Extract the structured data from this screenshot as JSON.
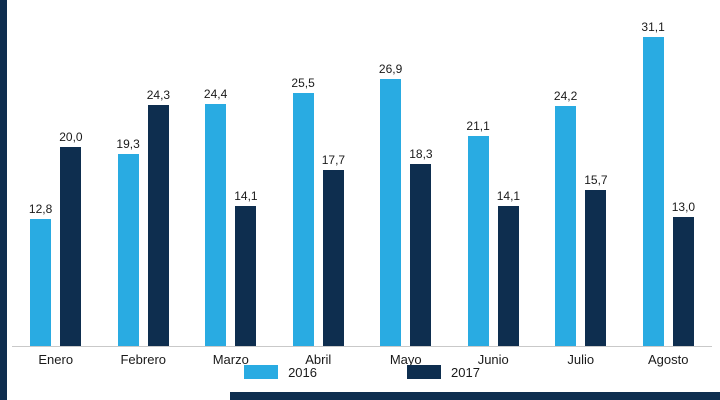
{
  "chart_data": {
    "type": "bar",
    "title": "",
    "categories": [
      "Enero",
      "Febrero",
      "Marzo",
      "Abril",
      "Mayo",
      "Junio",
      "Julio",
      "Agosto"
    ],
    "series": [
      {
        "name": "2016",
        "color": "#29abe2",
        "values": [
          12.8,
          19.3,
          24.4,
          25.5,
          26.9,
          21.1,
          24.2,
          31.1
        ]
      },
      {
        "name": "2017",
        "color": "#0e2e4f",
        "values": [
          20.0,
          24.3,
          14.1,
          17.7,
          18.3,
          14.1,
          15.7,
          13.0
        ]
      }
    ],
    "value_label_decimal_separator": ",",
    "xlabel": "",
    "ylabel": "",
    "ylim": [
      0,
      32
    ],
    "grid": false,
    "legend_position": "bottom-center"
  },
  "legend": {
    "items": [
      {
        "label": "2016",
        "color": "#29abe2"
      },
      {
        "label": "2017",
        "color": "#0e2e4f"
      }
    ]
  },
  "frame": {
    "left_strip_color": "#0e2e4f",
    "bottom_strip_color": "#0e2e4f",
    "axis_line_color": "#c9c9c9",
    "background": "#ffffff"
  }
}
